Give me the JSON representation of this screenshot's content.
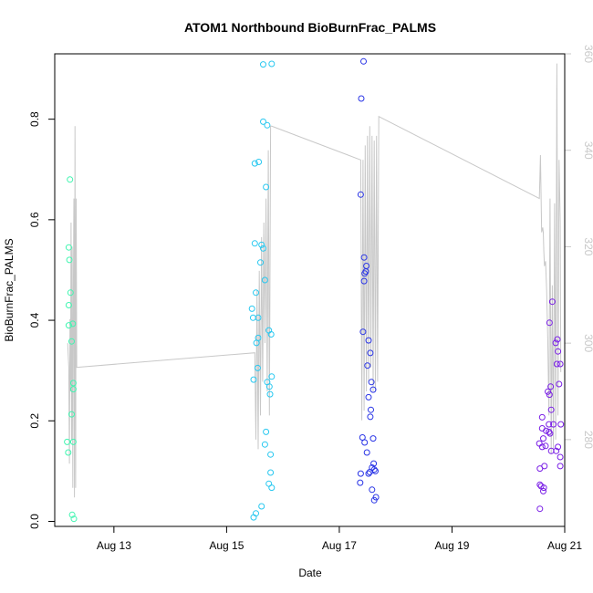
{
  "chart_data": {
    "type": "scatter",
    "title": "ATOM1 Northbound BioBurnFrac_PALMS",
    "xlabel": "Date",
    "ylabel": "BioBurnFrac_PALMS",
    "x_unit": "days since Aug 12 00:00",
    "xlim": [
      -0.05,
      9.0
    ],
    "ylim": [
      -0.01,
      0.93
    ],
    "x_ticks": [
      {
        "value": 1,
        "label": "Aug 13"
      },
      {
        "value": 3,
        "label": "Aug 15"
      },
      {
        "value": 5,
        "label": "Aug 17"
      },
      {
        "value": 7,
        "label": "Aug 19"
      },
      {
        "value": 9,
        "label": "Aug 21"
      }
    ],
    "y_ticks": [
      {
        "value": 0.0,
        "label": "0.0"
      },
      {
        "value": 0.2,
        "label": "0.2"
      },
      {
        "value": 0.4,
        "label": "0.4"
      },
      {
        "value": 0.6,
        "label": "0.6"
      },
      {
        "value": 0.8,
        "label": "0.8"
      }
    ],
    "y2lim": [
      262,
      360
    ],
    "y2_ticks": [
      {
        "value": 280,
        "label": "280"
      },
      {
        "value": 300,
        "label": "300"
      },
      {
        "value": 320,
        "label": "320"
      },
      {
        "value": 340,
        "label": "340"
      },
      {
        "value": 360,
        "label": "360"
      }
    ],
    "colors": {
      "series1": "#40f5b0",
      "series2": "#28c8f0",
      "series3": "#2a35e6",
      "series4": "#7a1fe6",
      "secondary": "#c8c8c8"
    },
    "series": [
      {
        "color": "#40f5b0",
        "points": [
          [
            0.22,
            0.68
          ],
          [
            0.2,
            0.545
          ],
          [
            0.21,
            0.52
          ],
          [
            0.2,
            0.43
          ],
          [
            0.23,
            0.455
          ],
          [
            0.2,
            0.39
          ],
          [
            0.27,
            0.393
          ],
          [
            0.25,
            0.358
          ],
          [
            0.28,
            0.275
          ],
          [
            0.28,
            0.263
          ],
          [
            0.25,
            0.213
          ],
          [
            0.17,
            0.158
          ],
          [
            0.28,
            0.158
          ],
          [
            0.19,
            0.137
          ],
          [
            0.26,
            0.013
          ],
          [
            0.29,
            0.005
          ]
        ]
      },
      {
        "color": "#28c8f0",
        "points": [
          [
            3.65,
            0.909
          ],
          [
            3.8,
            0.91
          ],
          [
            3.65,
            0.795
          ],
          [
            3.72,
            0.788
          ],
          [
            3.5,
            0.712
          ],
          [
            3.57,
            0.715
          ],
          [
            3.7,
            0.665
          ],
          [
            3.5,
            0.553
          ],
          [
            3.62,
            0.55
          ],
          [
            3.65,
            0.543
          ],
          [
            3.6,
            0.515
          ],
          [
            3.68,
            0.48
          ],
          [
            3.52,
            0.455
          ],
          [
            3.45,
            0.423
          ],
          [
            3.47,
            0.405
          ],
          [
            3.56,
            0.405
          ],
          [
            3.75,
            0.38
          ],
          [
            3.79,
            0.372
          ],
          [
            3.56,
            0.365
          ],
          [
            3.53,
            0.355
          ],
          [
            3.55,
            0.305
          ],
          [
            3.8,
            0.288
          ],
          [
            3.48,
            0.282
          ],
          [
            3.72,
            0.277
          ],
          [
            3.76,
            0.268
          ],
          [
            3.77,
            0.253
          ],
          [
            3.7,
            0.178
          ],
          [
            3.68,
            0.153
          ],
          [
            3.78,
            0.133
          ],
          [
            3.78,
            0.097
          ],
          [
            3.75,
            0.075
          ],
          [
            3.8,
            0.067
          ],
          [
            3.62,
            0.03
          ],
          [
            3.52,
            0.016
          ],
          [
            3.48,
            0.008
          ]
        ]
      },
      {
        "color": "#2a35e6",
        "points": [
          [
            5.43,
            0.915
          ],
          [
            5.39,
            0.841
          ],
          [
            5.38,
            0.65
          ],
          [
            5.44,
            0.525
          ],
          [
            5.48,
            0.508
          ],
          [
            5.47,
            0.497
          ],
          [
            5.45,
            0.493
          ],
          [
            5.44,
            0.478
          ],
          [
            5.52,
            0.36
          ],
          [
            5.42,
            0.377
          ],
          [
            5.55,
            0.335
          ],
          [
            5.5,
            0.31
          ],
          [
            5.57,
            0.277
          ],
          [
            5.6,
            0.262
          ],
          [
            5.52,
            0.247
          ],
          [
            5.56,
            0.222
          ],
          [
            5.55,
            0.208
          ],
          [
            5.41,
            0.167
          ],
          [
            5.6,
            0.165
          ],
          [
            5.45,
            0.157
          ],
          [
            5.49,
            0.137
          ],
          [
            5.61,
            0.115
          ],
          [
            5.62,
            0.103
          ],
          [
            5.58,
            0.107
          ],
          [
            5.54,
            0.098
          ],
          [
            5.64,
            0.1
          ],
          [
            5.38,
            0.095
          ],
          [
            5.52,
            0.095
          ],
          [
            5.37,
            0.077
          ],
          [
            5.58,
            0.063
          ],
          [
            5.65,
            0.048
          ],
          [
            5.62,
            0.042
          ]
        ]
      },
      {
        "color": "#7a1fe6",
        "points": [
          [
            8.78,
            0.437
          ],
          [
            8.73,
            0.395
          ],
          [
            8.87,
            0.362
          ],
          [
            8.84,
            0.355
          ],
          [
            8.88,
            0.338
          ],
          [
            8.86,
            0.313
          ],
          [
            8.92,
            0.313
          ],
          [
            8.9,
            0.273
          ],
          [
            8.75,
            0.268
          ],
          [
            8.7,
            0.258
          ],
          [
            8.73,
            0.252
          ],
          [
            8.76,
            0.222
          ],
          [
            8.6,
            0.207
          ],
          [
            8.72,
            0.193
          ],
          [
            8.8,
            0.193
          ],
          [
            8.93,
            0.193
          ],
          [
            8.6,
            0.185
          ],
          [
            8.67,
            0.18
          ],
          [
            8.72,
            0.178
          ],
          [
            8.74,
            0.175
          ],
          [
            8.62,
            0.165
          ],
          [
            8.55,
            0.155
          ],
          [
            8.66,
            0.15
          ],
          [
            8.6,
            0.148
          ],
          [
            8.88,
            0.148
          ],
          [
            8.85,
            0.14
          ],
          [
            8.76,
            0.14
          ],
          [
            8.92,
            0.128
          ],
          [
            8.64,
            0.11
          ],
          [
            8.92,
            0.11
          ],
          [
            8.56,
            0.105
          ],
          [
            8.56,
            0.073
          ],
          [
            8.58,
            0.07
          ],
          [
            8.63,
            0.067
          ],
          [
            8.62,
            0.06
          ],
          [
            8.56,
            0.025
          ]
        ]
      }
    ],
    "secondary_line": {
      "color": "#c8c8c8",
      "points": [
        [
          0.18,
          300
        ],
        [
          0.2,
          295
        ],
        [
          0.21,
          275
        ],
        [
          0.22,
          305
        ],
        [
          0.23,
          290
        ],
        [
          0.24,
          325
        ],
        [
          0.25,
          280
        ],
        [
          0.26,
          320
        ],
        [
          0.27,
          270
        ],
        [
          0.28,
          310
        ],
        [
          0.29,
          330
        ],
        [
          0.3,
          268
        ],
        [
          0.31,
          345
        ],
        [
          0.32,
          270
        ],
        [
          0.33,
          330
        ],
        [
          0.34,
          295
        ],
        [
          0.35,
          295
        ],
        [
          3.5,
          298
        ],
        [
          3.52,
          280
        ],
        [
          3.54,
          311
        ],
        [
          3.56,
          278
        ],
        [
          3.58,
          315
        ],
        [
          3.6,
          285
        ],
        [
          3.62,
          322
        ],
        [
          3.64,
          292
        ],
        [
          3.66,
          325
        ],
        [
          3.68,
          300
        ],
        [
          3.7,
          330
        ],
        [
          3.72,
          290
        ],
        [
          3.74,
          340
        ],
        [
          3.76,
          285
        ],
        [
          3.78,
          345
        ],
        [
          3.8,
          345
        ],
        [
          5.38,
          338
        ],
        [
          5.4,
          284
        ],
        [
          5.42,
          338
        ],
        [
          5.44,
          286
        ],
        [
          5.46,
          341
        ],
        [
          5.48,
          290
        ],
        [
          5.5,
          343
        ],
        [
          5.52,
          292
        ],
        [
          5.54,
          345
        ],
        [
          5.56,
          295
        ],
        [
          5.58,
          343
        ],
        [
          5.6,
          290
        ],
        [
          5.62,
          342
        ],
        [
          5.64,
          290
        ],
        [
          5.66,
          343
        ],
        [
          5.68,
          292
        ],
        [
          5.7,
          347
        ],
        [
          8.55,
          330
        ],
        [
          8.57,
          339
        ],
        [
          8.59,
          323
        ],
        [
          8.61,
          324
        ],
        [
          8.62,
          323
        ],
        [
          8.63,
          319
        ],
        [
          8.64,
          316
        ],
        [
          8.66,
          317
        ],
        [
          8.68,
          311
        ],
        [
          8.7,
          300
        ],
        [
          8.72,
          285
        ],
        [
          8.74,
          330
        ],
        [
          8.76,
          277
        ],
        [
          8.78,
          312
        ],
        [
          8.8,
          278
        ],
        [
          8.82,
          329
        ],
        [
          8.84,
          280
        ],
        [
          8.86,
          358
        ],
        [
          8.88,
          285
        ],
        [
          8.9,
          338
        ],
        [
          8.92,
          325
        ],
        [
          8.93,
          294
        ]
      ]
    }
  }
}
